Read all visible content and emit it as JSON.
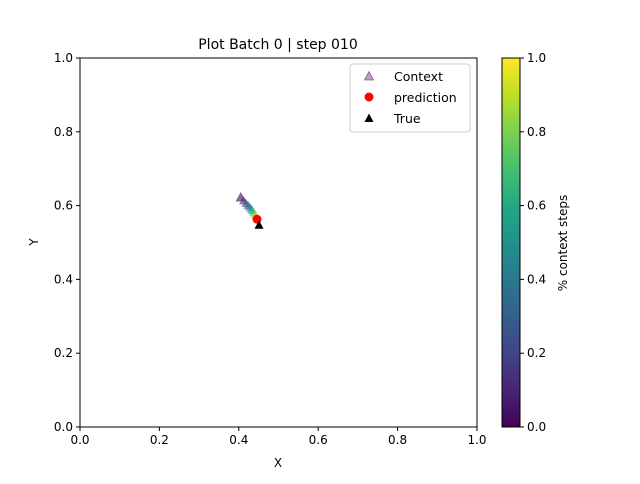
{
  "chart_data": {
    "type": "scatter",
    "title": "Plot Batch 0 | step 010",
    "xlabel": "X",
    "ylabel": "Y",
    "xlim": [
      0,
      1
    ],
    "ylim": [
      0,
      1
    ],
    "xticks": [
      "0.0",
      "0.2",
      "0.4",
      "0.6",
      "0.8",
      "1.0"
    ],
    "yticks": [
      "0.0",
      "0.2",
      "0.4",
      "0.6",
      "0.8",
      "1.0"
    ],
    "grid": false,
    "legend_position": "top-right",
    "series": [
      {
        "name": "Context",
        "marker": "triangle",
        "colormap": "viridis",
        "x": [
          0.405,
          0.412,
          0.418,
          0.423,
          0.427,
          0.431,
          0.434,
          0.437,
          0.44,
          0.443
        ],
        "y": [
          0.622,
          0.613,
          0.606,
          0.601,
          0.596,
          0.591,
          0.587,
          0.582,
          0.577,
          0.572
        ],
        "c": [
          0.0,
          0.1,
          0.2,
          0.3,
          0.4,
          0.5,
          0.6,
          0.7,
          0.8,
          0.9
        ]
      },
      {
        "name": "prediction",
        "marker": "circle",
        "color": "#ff0000",
        "x": [
          0.446
        ],
        "y": [
          0.563
        ]
      },
      {
        "name": "True",
        "marker": "triangle",
        "color": "#000000",
        "x": [
          0.451
        ],
        "y": [
          0.547
        ]
      }
    ],
    "colorbar": {
      "label": "% context steps",
      "range": [
        0,
        1
      ],
      "ticks": [
        "0.0",
        "0.2",
        "0.4",
        "0.6",
        "0.8",
        "1.0"
      ]
    }
  }
}
